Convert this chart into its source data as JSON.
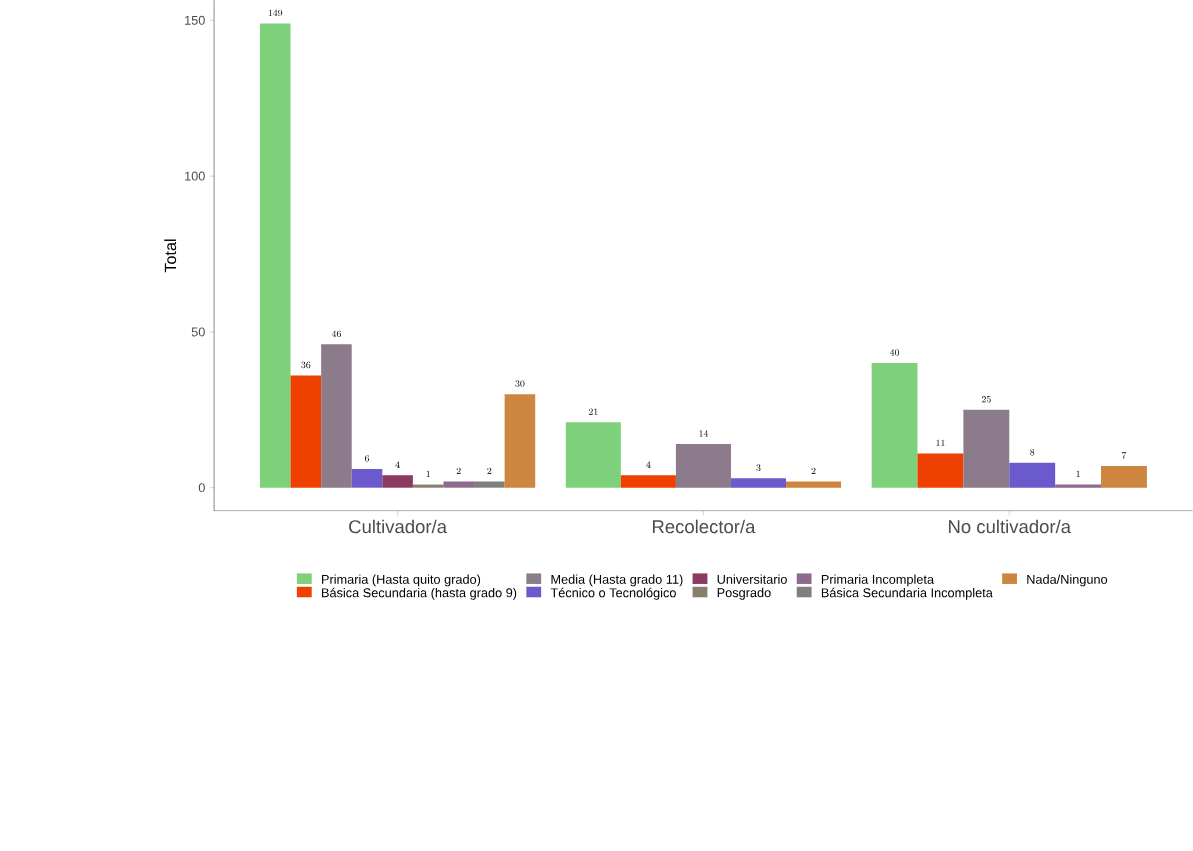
{
  "chart_data": {
    "type": "bar",
    "ylabel": "Total",
    "categories": [
      "Cultivador/a",
      "Recolector/a",
      "No cultivador/a"
    ],
    "series": [
      {
        "name": "Primaria (Hasta quito grado)",
        "color": "#7fd07a",
        "values": [
          149,
          21,
          40
        ]
      },
      {
        "name": "Básica Secundaria (hasta grado 9)",
        "color": "#ee4000",
        "values": [
          36,
          4,
          11
        ]
      },
      {
        "name": "Media (Hasta grado 11)",
        "color": "#8b7b8b",
        "values": [
          46,
          14,
          25
        ]
      },
      {
        "name": "Técnico o Tecnológico",
        "color": "#6a5acd",
        "values": [
          6,
          3,
          8
        ]
      },
      {
        "name": "Universitario",
        "color": "#8b3a62",
        "values": [
          4,
          null,
          null
        ]
      },
      {
        "name": "Posgrado",
        "color": "#8b7d6b",
        "values": [
          1,
          null,
          null
        ]
      },
      {
        "name": "Primaria Incompleta",
        "color": "#8e6a8e",
        "values": [
          2,
          null,
          1
        ]
      },
      {
        "name": "Básica Secundaria Incompleta",
        "color": "#7f7f7f",
        "values": [
          2,
          null,
          null
        ]
      },
      {
        "name": "Nada/Ninguno",
        "color": "#cd853f",
        "values": [
          30,
          2,
          7
        ]
      }
    ],
    "ylim": [
      -7.45,
      156.45
    ],
    "yticks": [
      0,
      50,
      100,
      150
    ],
    "data_labels": true,
    "grid": false,
    "legend": "bottom"
  }
}
